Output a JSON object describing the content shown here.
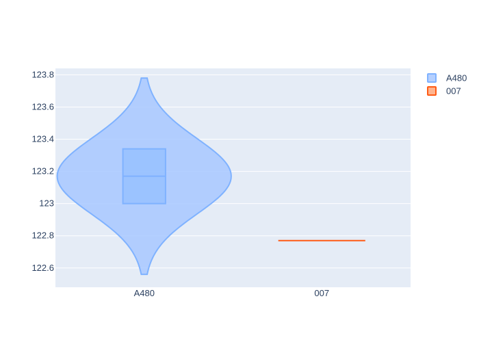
{
  "chart_data": {
    "type": "violin",
    "categories": [
      "A480",
      "007"
    ],
    "y_ticks": [
      122.6,
      122.8,
      123,
      123.2,
      123.4,
      123.6,
      123.8
    ],
    "y_tick_labels": [
      "122.6",
      "122.8",
      "123",
      "123.2",
      "123.4",
      "123.6",
      "123.8"
    ],
    "ylim": [
      122.48,
      123.84
    ],
    "grid": true,
    "legend_position": "top-right",
    "series": [
      {
        "name": "A480",
        "category": "A480",
        "color": "#636efa",
        "fill": "#a8c8ff",
        "line": "#7fb2ff",
        "min": 122.56,
        "max": 123.78,
        "q1": 123.0,
        "median": 123.17,
        "q3": 123.34,
        "peak_density_y": 123.17
      },
      {
        "name": "007",
        "category": "007",
        "color": "#ff6a1f",
        "fill": "#ffa77a",
        "line": "#ff5a14",
        "min": 122.77,
        "max": 122.77,
        "q1": 122.77,
        "median": 122.77,
        "q3": 122.77
      }
    ],
    "legend": [
      "A480",
      "007"
    ]
  }
}
